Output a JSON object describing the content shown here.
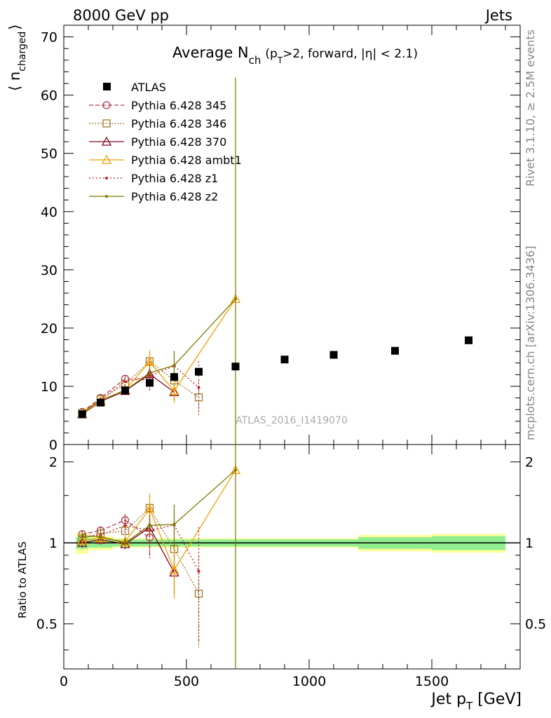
{
  "header": {
    "left": "8000 GeV pp",
    "right": "Jets",
    "side_rivet": "Rivet 3.1.10, ≥ 2.5M events",
    "side_mcplots": "mcplots.cern.ch [arXiv:1306.3436]",
    "watermark": "ATLAS_2016_I1419070"
  },
  "chart_data": {
    "type": "line",
    "title": "Average N_ch (p_T>2, forward, |η| < 2.1)",
    "title_parts": {
      "main": "Average N",
      "sub": "ch",
      "p1": "(p",
      "p2": "T",
      "p3": ">2, forward, |η| < 2.1)"
    },
    "ylabel_parts": {
      "open": "⟨ n",
      "sub": "charged",
      "close": "⟩"
    },
    "xlabel_parts": {
      "main": "Jet p",
      "sub": "T",
      "unit": " [GeV]"
    },
    "ratio_ylabel": "Ratio to ATLAS",
    "xlim": [
      0,
      1860
    ],
    "ylim": [
      0,
      72
    ],
    "ratio_ylim": [
      0.34,
      2.32
    ],
    "x_ticks": [
      0,
      500,
      1000,
      1500
    ],
    "y_ticks": [
      0,
      10,
      20,
      30,
      40,
      50,
      60,
      70
    ],
    "ratio_ticks": [
      0.5,
      1,
      2
    ],
    "data": {
      "name": "ATLAS",
      "x": [
        75,
        150,
        250,
        350,
        450,
        550,
        700,
        900,
        1100,
        1350,
        1650
      ],
      "xlow": [
        50,
        100,
        200,
        300,
        400,
        500,
        600,
        800,
        1000,
        1200,
        1500
      ],
      "xhigh": [
        100,
        200,
        300,
        400,
        500,
        600,
        800,
        1000,
        1200,
        1500,
        1800
      ],
      "y": [
        5.2,
        7.2,
        9.3,
        10.6,
        11.6,
        12.5,
        13.4,
        14.6,
        15.4,
        16.1,
        17.9
      ],
      "band_stat": [
        0.05,
        0.04,
        0.03,
        0.03,
        0.03,
        0.03,
        0.03,
        0.03,
        0.03,
        0.05,
        0.06
      ],
      "band_total": [
        0.09,
        0.06,
        0.04,
        0.04,
        0.04,
        0.04,
        0.04,
        0.04,
        0.04,
        0.07,
        0.08
      ]
    },
    "series": [
      {
        "name": "Pythia 6.428 345",
        "color": "#b03a4a",
        "dash": "6,3",
        "marker": "circle",
        "x": [
          75,
          150,
          250,
          350
        ],
        "y": [
          5.6,
          8.0,
          11.3,
          11.1
        ],
        "err": [
          0.2,
          0.3,
          0.6,
          1.8
        ]
      },
      {
        "name": "Pythia 6.428 346",
        "color": "#a07a30",
        "dash": "2,2",
        "marker": "square",
        "x": [
          75,
          150,
          250,
          350,
          450,
          550
        ],
        "y": [
          5.4,
          7.8,
          10.3,
          14.3,
          11.0,
          8.1
        ],
        "err": [
          0.2,
          0.3,
          0.5,
          1.5,
          2.0,
          3.0
        ]
      },
      {
        "name": "Pythia 6.428 370",
        "color": "#800020",
        "dash": "",
        "marker": "triangle",
        "x": [
          75,
          150,
          250,
          350,
          450
        ],
        "y": [
          5.2,
          7.4,
          9.2,
          12.1,
          9.0
        ],
        "err": [
          0.2,
          0.3,
          0.4,
          1.0,
          1.5
        ]
      },
      {
        "name": "Pythia 6.428 ambt1",
        "color": "#f0a000",
        "dash": "",
        "marker": "triangle",
        "x": [
          75,
          150,
          250,
          350,
          450,
          700
        ],
        "y": [
          5.3,
          7.5,
          9.4,
          14.2,
          9.2,
          25.0
        ],
        "err": [
          0.2,
          0.3,
          0.5,
          2.0,
          2.0,
          0
        ]
      },
      {
        "name": "Pythia 6.428 z1",
        "color": "#c02020",
        "dash": "2,3",
        "marker": "dot",
        "x": [
          75,
          150,
          250,
          350,
          450,
          550
        ],
        "y": [
          5.5,
          7.7,
          10.8,
          11.8,
          13.5,
          9.8
        ],
        "err": [
          0.2,
          0.3,
          0.7,
          2.5,
          1.5,
          4.5
        ]
      },
      {
        "name": "Pythia 6.428 z2",
        "color": "#7a7a00",
        "dash": "",
        "marker": "dot",
        "x": [
          75,
          150,
          250,
          350,
          450,
          700
        ],
        "y": [
          5.5,
          7.6,
          9.3,
          12.3,
          13.6,
          25.0
        ],
        "err": [
          0.2,
          0.3,
          0.4,
          1.0,
          2.5,
          38.0
        ]
      }
    ]
  }
}
